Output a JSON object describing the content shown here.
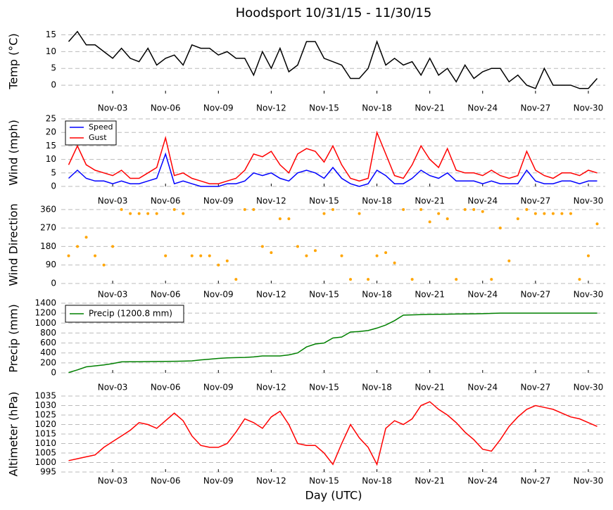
{
  "title": "Hoodsport 10/31/15 - 11/30/15",
  "chart_data": [
    {
      "type": "line",
      "ylabel": "Temp (°C)",
      "color": "#000000",
      "grid": true,
      "x": [
        0.5,
        1,
        1.5,
        2,
        2.5,
        3,
        3.5,
        4,
        4.5,
        5,
        5.5,
        6,
        6.5,
        7,
        7.5,
        8,
        8.5,
        9,
        9.5,
        10,
        10.5,
        11,
        11.5,
        12,
        12.5,
        13,
        13.5,
        14,
        14.5,
        15,
        15.5,
        16,
        16.5,
        17,
        17.5,
        18,
        18.5,
        19,
        19.5,
        20,
        20.5,
        21,
        21.5,
        22,
        22.5,
        23,
        23.5,
        24,
        24.5,
        25,
        25.5,
        26,
        26.5,
        27,
        27.5,
        28,
        28.5,
        29,
        29.5,
        30,
        30.5
      ],
      "values": [
        13,
        16,
        12,
        12,
        10,
        8,
        11,
        8,
        7,
        11,
        6,
        8,
        9,
        6,
        12,
        11,
        11,
        9,
        10,
        8,
        8,
        3,
        10,
        5,
        11,
        4,
        6,
        13,
        13,
        8,
        7,
        6,
        2,
        2,
        5,
        13,
        6,
        8,
        6,
        7,
        3,
        8,
        3,
        5,
        1,
        6,
        2,
        4,
        5,
        5,
        1,
        3,
        0,
        -1,
        5,
        0,
        0,
        0,
        -1,
        -1,
        2
      ],
      "xlim": [
        0.08,
        30.96
      ],
      "ylim": [
        -2.5,
        17
      ],
      "yticks": [
        0,
        5,
        10,
        15
      ],
      "xticks": [
        {
          "value": 3,
          "label": "Nov-03"
        },
        {
          "value": 6,
          "label": "Nov-06"
        },
        {
          "value": 9,
          "label": "Nov-09"
        },
        {
          "value": 12,
          "label": "Nov-12"
        },
        {
          "value": 15,
          "label": "Nov-15"
        },
        {
          "value": 18,
          "label": "Nov-18"
        },
        {
          "value": 21,
          "label": "Nov-21"
        },
        {
          "value": 24,
          "label": "Nov-24"
        },
        {
          "value": 27,
          "label": "Nov-27"
        },
        {
          "value": 30,
          "label": "Nov-30"
        }
      ]
    },
    {
      "type": "line",
      "ylabel": "Wind (mph)",
      "grid": true,
      "legend": "upper left",
      "x": [
        0.5,
        1,
        1.5,
        2,
        2.5,
        3,
        3.5,
        4,
        4.5,
        5,
        5.5,
        6,
        6.5,
        7,
        7.5,
        8,
        8.5,
        9,
        9.5,
        10,
        10.5,
        11,
        11.5,
        12,
        12.5,
        13,
        13.5,
        14,
        14.5,
        15,
        15.5,
        16,
        16.5,
        17,
        17.5,
        18,
        18.5,
        19,
        19.5,
        20,
        20.5,
        21,
        21.5,
        22,
        22.5,
        23,
        23.5,
        24,
        24.5,
        25,
        25.5,
        26,
        26.5,
        27,
        27.5,
        28,
        28.5,
        29,
        29.5,
        30,
        30.5
      ],
      "series": [
        {
          "name": "Speed",
          "color": "#0000ff",
          "values": [
            3,
            6,
            3,
            2,
            2,
            1,
            2,
            1,
            1,
            2,
            3,
            12,
            1,
            2,
            1,
            0,
            0,
            0,
            1,
            1,
            2,
            5,
            4,
            5,
            3,
            2,
            5,
            6,
            5,
            3,
            7,
            3,
            1,
            0,
            1,
            6,
            4,
            1,
            1,
            3,
            6,
            4,
            3,
            5,
            2,
            2,
            2,
            1,
            2,
            1,
            1,
            1,
            6,
            2,
            1,
            1,
            2,
            2,
            1,
            2,
            2
          ]
        },
        {
          "name": "Gust",
          "color": "#ff0000",
          "values": [
            8,
            15,
            8,
            6,
            5,
            4,
            6,
            3,
            3,
            5,
            7,
            18,
            4,
            5,
            3,
            2,
            1,
            1,
            2,
            3,
            6,
            12,
            11,
            13,
            8,
            5,
            12,
            14,
            13,
            9,
            15,
            8,
            3,
            2,
            3,
            20,
            12,
            4,
            3,
            8,
            15,
            10,
            7,
            14,
            6,
            5,
            5,
            4,
            6,
            4,
            3,
            4,
            13,
            6,
            4,
            3,
            5,
            5,
            4,
            6,
            5
          ]
        }
      ],
      "xlim": [
        0.08,
        30.96
      ],
      "ylim": [
        0,
        25
      ],
      "yticks": [
        0,
        5,
        10,
        15,
        20,
        25
      ],
      "xticks": [
        {
          "value": 3,
          "label": "Nov-03"
        },
        {
          "value": 6,
          "label": "Nov-06"
        },
        {
          "value": 9,
          "label": "Nov-09"
        },
        {
          "value": 12,
          "label": "Nov-12"
        },
        {
          "value": 15,
          "label": "Nov-15"
        },
        {
          "value": 18,
          "label": "Nov-18"
        },
        {
          "value": 21,
          "label": "Nov-21"
        },
        {
          "value": 24,
          "label": "Nov-24"
        },
        {
          "value": 27,
          "label": "Nov-27"
        },
        {
          "value": 30,
          "label": "Nov-30"
        }
      ]
    },
    {
      "type": "scatter",
      "ylabel": "Wind Direction",
      "color": "#ffa500",
      "grid": true,
      "x": [
        0.5,
        1,
        1.5,
        2,
        2.5,
        3,
        3.5,
        4,
        4.5,
        5,
        5.5,
        6,
        6.5,
        7,
        7.5,
        8,
        8.5,
        9,
        9.5,
        10,
        10.5,
        11,
        11.5,
        12,
        12.5,
        13,
        13.5,
        14,
        14.5,
        15,
        15.5,
        16,
        16.5,
        17,
        17.5,
        18,
        18.5,
        19,
        19.5,
        20,
        20.5,
        21,
        21.5,
        22,
        22.5,
        23,
        23.5,
        24,
        24.5,
        25,
        25.5,
        26,
        26.5,
        27,
        27.5,
        28,
        28.5,
        29,
        29.5,
        30,
        30.5
      ],
      "values": [
        135,
        180,
        225,
        135,
        90,
        180,
        360,
        340,
        340,
        340,
        340,
        135,
        360,
        340,
        135,
        135,
        135,
        90,
        110,
        20,
        360,
        360,
        180,
        150,
        315,
        315,
        180,
        135,
        160,
        340,
        360,
        135,
        20,
        340,
        20,
        135,
        150,
        100,
        360,
        20,
        360,
        300,
        340,
        315,
        20,
        360,
        360,
        350,
        20,
        270,
        110,
        315,
        360,
        340,
        340,
        340,
        340,
        340,
        20,
        135,
        290
      ],
      "xlim": [
        0.08,
        30.96
      ],
      "ylim": [
        0,
        380
      ],
      "yticks": [
        0,
        90,
        180,
        270,
        360
      ],
      "xticks": [
        {
          "value": 3,
          "label": "Nov-03"
        },
        {
          "value": 6,
          "label": "Nov-06"
        },
        {
          "value": 9,
          "label": "Nov-09"
        },
        {
          "value": 12,
          "label": "Nov-12"
        },
        {
          "value": 15,
          "label": "Nov-15"
        },
        {
          "value": 18,
          "label": "Nov-18"
        },
        {
          "value": 21,
          "label": "Nov-21"
        },
        {
          "value": 24,
          "label": "Nov-24"
        },
        {
          "value": 27,
          "label": "Nov-27"
        },
        {
          "value": 30,
          "label": "Nov-30"
        }
      ]
    },
    {
      "type": "line",
      "ylabel": "Precip (mm)",
      "grid": true,
      "legend": "upper left",
      "x": [
        0.5,
        1,
        1.5,
        2,
        2.5,
        3,
        3.5,
        4,
        4.5,
        5,
        5.5,
        6,
        6.5,
        7,
        7.5,
        8,
        8.5,
        9,
        9.5,
        10,
        10.5,
        11,
        11.5,
        12,
        12.5,
        13,
        13.5,
        14,
        14.5,
        15,
        15.5,
        16,
        16.5,
        17,
        17.5,
        18,
        18.5,
        19,
        19.5,
        20,
        20.5,
        21,
        21.5,
        22,
        22.5,
        23,
        23.5,
        24,
        24.5,
        25,
        25.5,
        26,
        26.5,
        27,
        27.5,
        28,
        28.5,
        29,
        29.5,
        30,
        30.5
      ],
      "series": [
        {
          "name": "Precip (1200.8 mm)",
          "color": "#008000",
          "values": [
            5,
            60,
            120,
            140,
            160,
            185,
            220,
            222,
            224,
            226,
            228,
            230,
            232,
            235,
            240,
            260,
            275,
            290,
            300,
            305,
            310,
            320,
            340,
            340,
            340,
            360,
            400,
            520,
            580,
            600,
            700,
            720,
            820,
            830,
            850,
            900,
            960,
            1050,
            1160,
            1165,
            1170,
            1175,
            1177,
            1180,
            1182,
            1185,
            1187,
            1190,
            1195,
            1200,
            1200,
            1200.1,
            1200.2,
            1200.3,
            1200.4,
            1200.5,
            1200.6,
            1200.7,
            1200.7,
            1200.8,
            1200.8
          ]
        }
      ],
      "xlim": [
        0.08,
        30.96
      ],
      "ylim": [
        0,
        1400
      ],
      "yticks": [
        0,
        200,
        400,
        600,
        800,
        1000,
        1200,
        1400
      ],
      "xticks": [
        {
          "value": 3,
          "label": "Nov-03"
        },
        {
          "value": 6,
          "label": "Nov-06"
        },
        {
          "value": 9,
          "label": "Nov-09"
        },
        {
          "value": 12,
          "label": "Nov-12"
        },
        {
          "value": 15,
          "label": "Nov-15"
        },
        {
          "value": 18,
          "label": "Nov-18"
        },
        {
          "value": 21,
          "label": "Nov-21"
        },
        {
          "value": 24,
          "label": "Nov-24"
        },
        {
          "value": 27,
          "label": "Nov-27"
        },
        {
          "value": 30,
          "label": "Nov-30"
        }
      ]
    },
    {
      "type": "line",
      "ylabel": "Altimeter (hPa)",
      "xlabel": "Day (UTC)",
      "color": "#ff0000",
      "grid": true,
      "x": [
        0.5,
        1,
        1.5,
        2,
        2.5,
        3,
        3.5,
        4,
        4.5,
        5,
        5.5,
        6,
        6.5,
        7,
        7.5,
        8,
        8.5,
        9,
        9.5,
        10,
        10.5,
        11,
        11.5,
        12,
        12.5,
        13,
        13.5,
        14,
        14.5,
        15,
        15.5,
        16,
        16.5,
        17,
        17.5,
        18,
        18.5,
        19,
        19.5,
        20,
        20.5,
        21,
        21.5,
        22,
        22.5,
        23,
        23.5,
        24,
        24.5,
        25,
        25.5,
        26,
        26.5,
        27,
        27.5,
        28,
        28.5,
        29,
        29.5,
        30,
        30.5
      ],
      "values": [
        1001,
        1002,
        1003,
        1004,
        1008,
        1011,
        1014,
        1017,
        1021,
        1020,
        1018,
        1022,
        1026,
        1022,
        1014,
        1009,
        1008,
        1008,
        1010,
        1016,
        1023,
        1021,
        1018,
        1024,
        1027,
        1020,
        1010,
        1009,
        1009,
        1005,
        999,
        1010,
        1020,
        1013,
        1008,
        999,
        1018,
        1022,
        1020,
        1023,
        1030,
        1032,
        1028,
        1025,
        1021,
        1016,
        1012,
        1007,
        1006,
        1012,
        1019,
        1024,
        1028,
        1030,
        1029,
        1028,
        1026,
        1024,
        1023,
        1021,
        1019
      ],
      "xlim": [
        0.08,
        30.96
      ],
      "ylim": [
        995,
        1035
      ],
      "yticks": [
        995,
        1000,
        1005,
        1010,
        1015,
        1020,
        1025,
        1030,
        1035
      ],
      "xticks": [
        {
          "value": 3,
          "label": "Nov-03"
        },
        {
          "value": 6,
          "label": "Nov-06"
        },
        {
          "value": 9,
          "label": "Nov-09"
        },
        {
          "value": 12,
          "label": "Nov-12"
        },
        {
          "value": 15,
          "label": "Nov-15"
        },
        {
          "value": 18,
          "label": "Nov-18"
        },
        {
          "value": 21,
          "label": "Nov-21"
        },
        {
          "value": 24,
          "label": "Nov-24"
        },
        {
          "value": 27,
          "label": "Nov-27"
        },
        {
          "value": 30,
          "label": "Nov-30"
        }
      ]
    }
  ]
}
